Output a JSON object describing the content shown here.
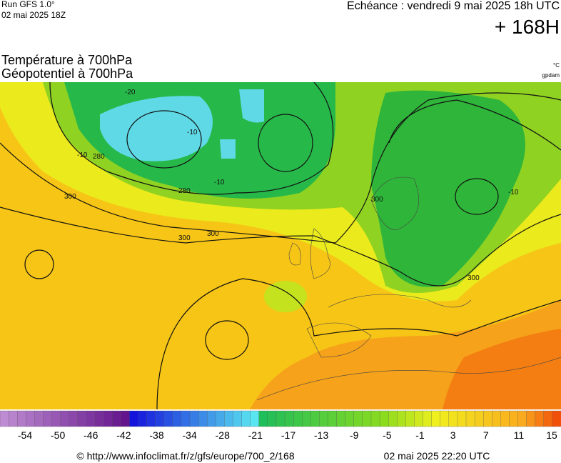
{
  "header": {
    "run": "Run GFS 1.0°",
    "run_date": "02 mai 2025 18Z",
    "forecast": "Echéance : vendredi 9 mai 2025 18h UTC",
    "lead": "+ 168H"
  },
  "titles": {
    "line1": "Température à 700hPa",
    "line2": "Géopotentiel à 700hPa",
    "unit1": "°C",
    "unit2": "gpdam"
  },
  "map": {
    "contour_labels": [
      "280",
      "280",
      "300",
      "300",
      "300",
      "300",
      "300",
      "-10",
      "-20",
      "-10",
      "-10",
      "-10"
    ]
  },
  "colorbar": {
    "labels": [
      "-54",
      "-50",
      "-46",
      "-42",
      "-38",
      "-34",
      "-28",
      "-21",
      "-17",
      "-13",
      "-9",
      "-5",
      "-1",
      "3",
      "7",
      "11",
      "15"
    ]
  },
  "footer": {
    "source": "© http://www.infoclimat.fr/z/gfs/europe/700_2/168",
    "generated": "02 mai 2025 22:20 UTC"
  }
}
